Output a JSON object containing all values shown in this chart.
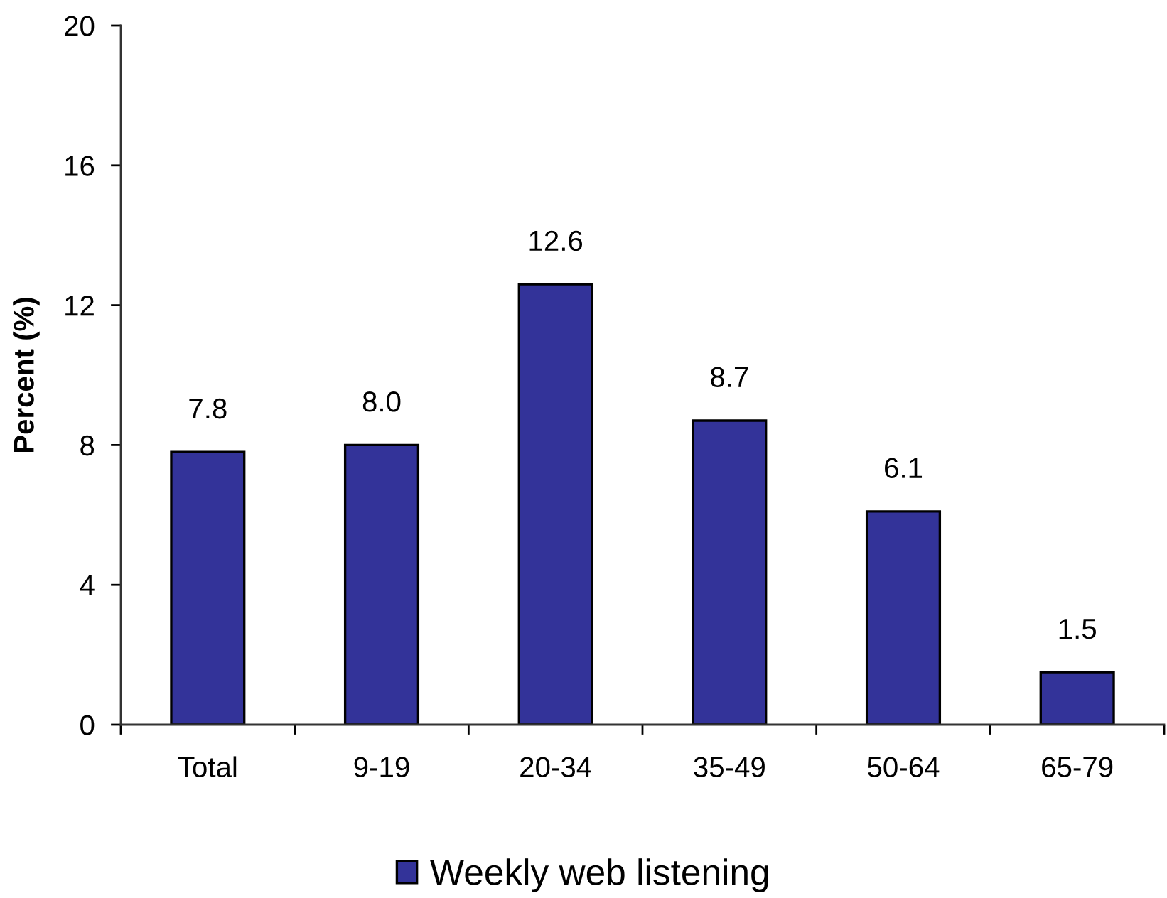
{
  "chart_data": {
    "type": "bar",
    "ylabel": "Percent (%)",
    "categories": [
      "Total",
      "9-19",
      "20-34",
      "35-49",
      "50-64",
      "65-79"
    ],
    "series": [
      {
        "name": "Weekly web listening",
        "color": "#333399",
        "values": [
          7.8,
          8.0,
          12.6,
          8.7,
          6.1,
          1.5
        ],
        "value_labels": [
          "7.8",
          "8.0",
          "12.6",
          "8.7",
          "6.1",
          "1.5"
        ]
      }
    ],
    "ylim": [
      0,
      20
    ],
    "yticks": [
      0,
      4,
      8,
      12,
      16,
      20
    ],
    "legend": "bottom",
    "grid": false
  }
}
